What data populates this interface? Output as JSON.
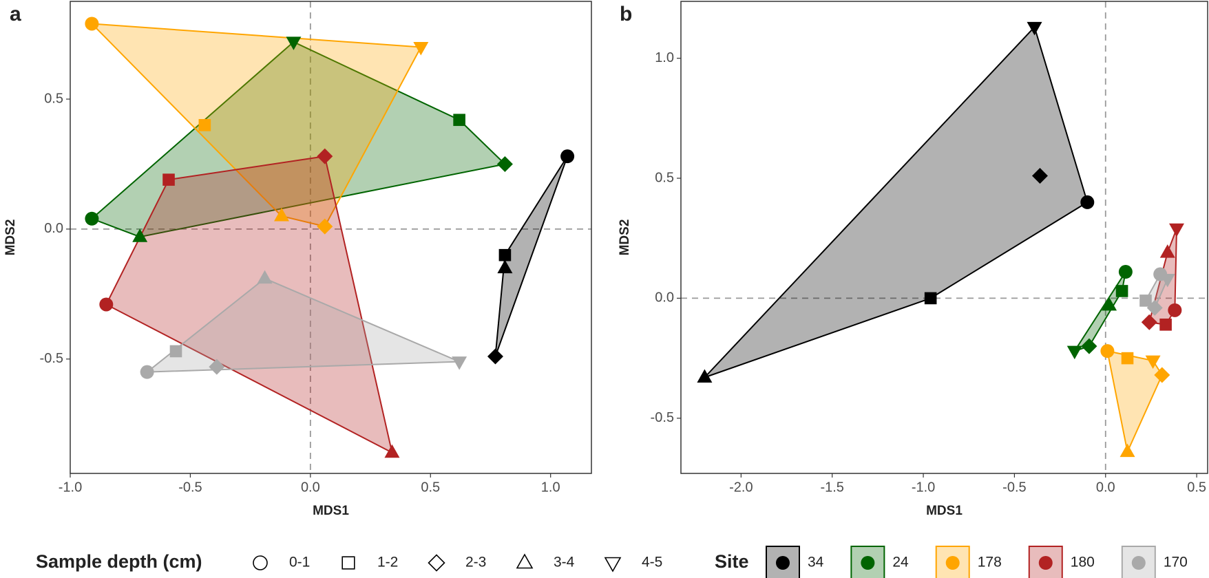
{
  "chart_data": [
    {
      "type": "scatter",
      "label": "a",
      "x_label": "MDS1",
      "y_label": "MDS2",
      "xlim": [
        -1.0,
        1.17
      ],
      "ylim": [
        -0.94,
        0.876
      ],
      "xticks": [
        {
          "value": -1.0,
          "label": "-1.0"
        },
        -0.5,
        {
          "value": 0.0,
          "label": "0.0"
        },
        0.5,
        {
          "value": 1.0,
          "label": "1.0"
        }
      ],
      "yticks": [
        -0.5,
        {
          "value": 0.0,
          "label": "0.0"
        },
        0.5
      ],
      "reference_lines": true,
      "hull": true,
      "series": [
        {
          "name": "34",
          "color": "#000000",
          "shape": [
            "circle",
            "square",
            "diamond",
            "triangle"
          ],
          "x": [
            1.07,
            0.81,
            0.77,
            0.81
          ],
          "y": [
            0.28,
            -0.1,
            -0.49,
            -0.15
          ]
        },
        {
          "name": "24",
          "color": "#006400",
          "shape": [
            "circle",
            "square",
            "diamond",
            "triangle",
            "triangle-down"
          ],
          "x": [
            -0.91,
            0.62,
            0.81,
            -0.71,
            -0.07
          ],
          "y": [
            0.04,
            0.42,
            0.25,
            -0.03,
            0.72
          ]
        },
        {
          "name": "178",
          "color": "#ffa500",
          "shape": [
            "circle",
            "square",
            "diamond",
            "triangle",
            "triangle-down"
          ],
          "x": [
            -0.91,
            -0.44,
            0.06,
            -0.12,
            0.46
          ],
          "y": [
            0.79,
            0.4,
            0.01,
            0.05,
            0.7
          ]
        },
        {
          "name": "180",
          "color": "#b22222",
          "shape": [
            "circle",
            "square",
            "diamond",
            "triangle"
          ],
          "x": [
            -0.85,
            -0.59,
            0.06,
            0.34
          ],
          "y": [
            -0.29,
            0.19,
            0.28,
            -0.86
          ]
        },
        {
          "name": "170",
          "color": "#a9a9a9",
          "shape": [
            "circle",
            "square",
            "diamond",
            "triangle",
            "triangle-down"
          ],
          "x": [
            -0.68,
            -0.56,
            -0.39,
            -0.19,
            0.62
          ],
          "y": [
            -0.55,
            -0.47,
            -0.53,
            -0.19,
            -0.51
          ]
        }
      ]
    },
    {
      "type": "scatter",
      "label": "b",
      "x_label": "MDS1",
      "y_label": "MDS2",
      "xlim": [
        -2.33,
        0.56
      ],
      "ylim": [
        -0.73,
        1.237
      ],
      "xticks": [
        {
          "value": -2.0,
          "label": "-2.0"
        },
        -1.5,
        {
          "value": -1.0,
          "label": "-1.0"
        },
        -0.5,
        {
          "value": 0.0,
          "label": "0.0"
        },
        0.5
      ],
      "yticks": [
        -0.5,
        {
          "value": 0.0,
          "label": "0.0"
        },
        0.5,
        {
          "value": 1.0,
          "label": "1.0"
        }
      ],
      "reference_lines": true,
      "hull": true,
      "series": [
        {
          "name": "34",
          "color": "#000000",
          "shape": [
            "circle",
            "square",
            "diamond",
            "triangle",
            "triangle-down"
          ],
          "x": [
            -0.1,
            -0.96,
            -0.36,
            -2.2,
            -0.39
          ],
          "y": [
            0.4,
            0.0,
            0.51,
            -0.33,
            1.13
          ]
        },
        {
          "name": "24",
          "color": "#006400",
          "shape": [
            "circle",
            "square",
            "diamond",
            "triangle",
            "triangle-down"
          ],
          "x": [
            0.11,
            0.09,
            -0.09,
            0.02,
            -0.17
          ],
          "y": [
            0.11,
            0.03,
            -0.2,
            -0.03,
            -0.22
          ]
        },
        {
          "name": "178",
          "color": "#ffa500",
          "shape": [
            "circle",
            "square",
            "diamond",
            "triangle",
            "triangle-down"
          ],
          "x": [
            0.01,
            0.12,
            0.31,
            0.12,
            0.26
          ],
          "y": [
            -0.22,
            -0.25,
            -0.32,
            -0.64,
            -0.26
          ]
        },
        {
          "name": "180",
          "color": "#b22222",
          "shape": [
            "circle",
            "square",
            "diamond",
            "triangle",
            "triangle-down"
          ],
          "x": [
            0.38,
            0.33,
            0.24,
            0.34,
            0.39
          ],
          "y": [
            -0.05,
            -0.11,
            -0.1,
            0.19,
            0.29
          ]
        },
        {
          "name": "170",
          "color": "#a9a9a9",
          "shape": [
            "circle",
            "square",
            "diamond",
            "triangle-down"
          ],
          "x": [
            0.3,
            0.22,
            0.27,
            0.34
          ],
          "y": [
            0.1,
            -0.01,
            -0.04,
            0.08
          ]
        }
      ]
    }
  ],
  "legend": {
    "depth_title": "Sample depth (cm)",
    "depths": [
      {
        "label": "0-1",
        "shape": "circle"
      },
      {
        "label": "1-2",
        "shape": "square"
      },
      {
        "label": "2-3",
        "shape": "diamond"
      },
      {
        "label": "3-4",
        "shape": "triangle"
      },
      {
        "label": "4-5",
        "shape": "triangle-down"
      }
    ],
    "site_title": "Site"
  }
}
